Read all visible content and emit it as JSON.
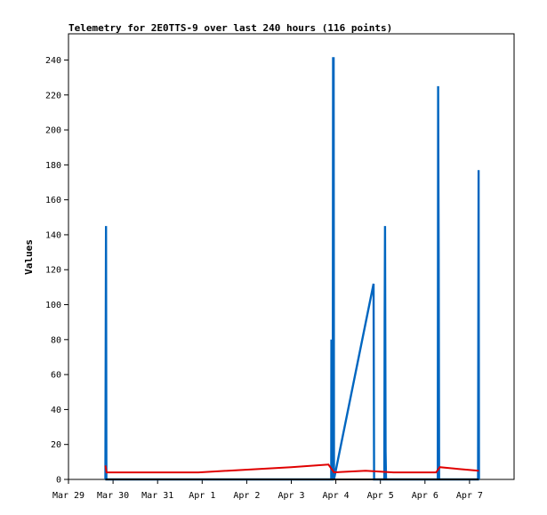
{
  "chart_data": {
    "type": "line",
    "title": "Telemetry for 2E0TTS-9 over last 240 hours (116 points)",
    "xlabel": "",
    "ylabel": "Values",
    "x_tick_labels": [
      "Mar 29",
      "Mar 30",
      "Mar 31",
      "Apr 1",
      "Apr 2",
      "Apr 3",
      "Apr 4",
      "Apr 5",
      "Apr 6",
      "Apr 7"
    ],
    "x_ticks": [
      0,
      24,
      48,
      72,
      96,
      120,
      144,
      168,
      192,
      216
    ],
    "xlim": [
      0,
      240
    ],
    "y_ticks": [
      0,
      20,
      40,
      60,
      80,
      100,
      120,
      140,
      160,
      180,
      200,
      220,
      240
    ],
    "ylim": [
      0,
      255
    ],
    "grid": false,
    "legend": "none",
    "series": [
      {
        "color": "#0066c0",
        "points": [
          [
            19.9,
            0
          ],
          [
            20.2,
            145
          ],
          [
            20.4,
            0
          ],
          [
            141.5,
            0
          ],
          [
            141.6,
            80
          ],
          [
            141.8,
            0
          ],
          [
            142.3,
            0
          ],
          [
            142.5,
            241
          ],
          [
            142.8,
            241
          ],
          [
            143.0,
            0
          ],
          [
            164.3,
            112
          ],
          [
            164.6,
            0
          ],
          [
            170.1,
            0
          ],
          [
            170.3,
            92
          ],
          [
            170.5,
            145
          ],
          [
            170.8,
            16
          ],
          [
            171.0,
            0
          ],
          [
            198.9,
            0
          ],
          [
            199.1,
            225
          ],
          [
            199.4,
            128
          ],
          [
            199.6,
            0
          ],
          [
            220.6,
            0
          ],
          [
            220.9,
            177
          ],
          [
            221.1,
            0
          ]
        ]
      },
      {
        "color": "#e00000",
        "points": [
          [
            19.9,
            8
          ],
          [
            20.5,
            4
          ],
          [
            45,
            4
          ],
          [
            70,
            4
          ],
          [
            120,
            7
          ],
          [
            140,
            8.5
          ],
          [
            143,
            4
          ],
          [
            160,
            5
          ],
          [
            175,
            4
          ],
          [
            198,
            4
          ],
          [
            200,
            7
          ],
          [
            210,
            6
          ],
          [
            221,
            5
          ]
        ]
      },
      {
        "color": "#000000",
        "points": [
          [
            19.9,
            0
          ],
          [
            221,
            0
          ]
        ]
      }
    ]
  }
}
